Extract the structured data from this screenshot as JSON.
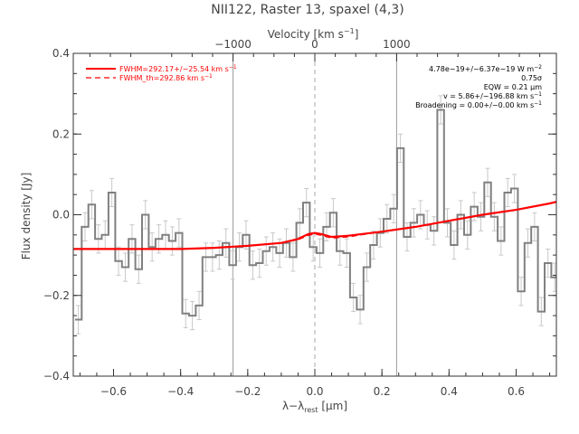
{
  "chart_data": {
    "type": "line",
    "title": "NII122, Raster 13, spaxel (4,3)",
    "xlabel": "λ−λrest [μm]",
    "xlabel_main": "λ−λ",
    "xlabel_sub": "rest",
    "xlabel_unit": " [μm]",
    "ylabel": "Flux density [Jy]",
    "top_xlabel": "Velocity [km s⁻¹]",
    "top_xlabel_main": "Velocity [km s",
    "top_xlabel_sup": "−1",
    "top_xlabel_end": "]",
    "xlim": [
      -0.72,
      0.72
    ],
    "ylim": [
      -0.4,
      0.4
    ],
    "x_ticks": [
      -0.6,
      -0.4,
      -0.2,
      0.0,
      0.2,
      0.4,
      0.6
    ],
    "x_tick_labels": [
      "−0.6",
      "−0.4",
      "−0.2",
      "0.0",
      "0.2",
      "0.4",
      "0.6"
    ],
    "y_ticks": [
      -0.4,
      -0.2,
      0.0,
      0.2,
      0.4
    ],
    "y_tick_labels": [
      "−0.4",
      "−0.2",
      "0.0",
      "0.2",
      "0.4"
    ],
    "top_ticks_wavelength": [
      -0.2438,
      0.0,
      0.2438
    ],
    "top_tick_labels": [
      "−1000",
      "0",
      "1000"
    ],
    "vertical_lines_solid": [
      -0.2438,
      0.2438
    ],
    "vertical_line_dashed": 0.0,
    "legend": [
      {
        "label": "FWHM=292.17+/−25.54 km s",
        "sup": "−1",
        "style": "solid",
        "color": "#ff0000"
      },
      {
        "label": "FWHM_th=292.86 km s",
        "sup": "−1",
        "style": "dashed",
        "color": "#ff0000"
      }
    ],
    "legend_position": "top-left",
    "annotations": [
      {
        "text": "4.78e−19+/−6.37e−19 W m",
        "sup": "−2"
      },
      {
        "text": "0.75σ",
        "sup": ""
      },
      {
        "text": "EQW = 0.21 μm",
        "sup": ""
      },
      {
        "text": "v = 5.86+/−196.88 km s",
        "sup": "−1"
      },
      {
        "text": "Broadening = 0.00+/−0.00 km s",
        "sup": "−1"
      }
    ],
    "annotation_position": "top-right",
    "series": [
      {
        "style": "step",
        "color": "#808080",
        "x": [
          -0.705,
          -0.685,
          -0.665,
          -0.645,
          -0.625,
          -0.605,
          -0.585,
          -0.565,
          -0.545,
          -0.525,
          -0.505,
          -0.485,
          -0.465,
          -0.445,
          -0.425,
          -0.405,
          -0.385,
          -0.365,
          -0.345,
          -0.325,
          -0.305,
          -0.285,
          -0.265,
          -0.245,
          -0.225,
          -0.205,
          -0.185,
          -0.165,
          -0.145,
          -0.125,
          -0.105,
          -0.085,
          -0.065,
          -0.045,
          -0.025,
          -0.005,
          0.015,
          0.035,
          0.055,
          0.075,
          0.095,
          0.115,
          0.135,
          0.155,
          0.175,
          0.195,
          0.215,
          0.235,
          0.255,
          0.275,
          0.295,
          0.315,
          0.335,
          0.355,
          0.375,
          0.395,
          0.415,
          0.435,
          0.455,
          0.475,
          0.495,
          0.515,
          0.535,
          0.555,
          0.575,
          0.595,
          0.615,
          0.635,
          0.655,
          0.675,
          0.695,
          0.715
        ],
        "y": [
          -0.26,
          -0.03,
          0.025,
          -0.06,
          -0.05,
          0.055,
          -0.115,
          -0.13,
          -0.06,
          -0.135,
          0.0,
          -0.08,
          -0.06,
          -0.05,
          -0.065,
          -0.045,
          -0.245,
          -0.25,
          -0.225,
          -0.105,
          -0.105,
          -0.1,
          -0.07,
          -0.125,
          -0.08,
          -0.05,
          -0.125,
          -0.12,
          -0.09,
          -0.08,
          -0.095,
          -0.07,
          -0.105,
          -0.02,
          0.03,
          -0.08,
          -0.095,
          -0.03,
          0.005,
          -0.09,
          -0.095,
          -0.205,
          -0.235,
          -0.13,
          -0.075,
          -0.045,
          -0.01,
          0.015,
          0.165,
          -0.055,
          -0.02,
          0.0,
          -0.025,
          -0.04,
          0.26,
          -0.02,
          -0.075,
          0.0,
          -0.05,
          0.02,
          -0.005,
          0.08,
          -0.005,
          -0.065,
          0.055,
          0.065,
          -0.19,
          -0.07,
          -0.03,
          -0.24,
          -0.12,
          -0.155
        ],
        "err": [
          0.035,
          0.035,
          0.035,
          0.035,
          0.035,
          0.035,
          0.035,
          0.035,
          0.035,
          0.035,
          0.035,
          0.035,
          0.035,
          0.035,
          0.035,
          0.035,
          0.035,
          0.035,
          0.035,
          0.035,
          0.035,
          0.035,
          0.035,
          0.035,
          0.035,
          0.035,
          0.035,
          0.035,
          0.035,
          0.035,
          0.035,
          0.035,
          0.035,
          0.035,
          0.035,
          0.035,
          0.035,
          0.035,
          0.035,
          0.035,
          0.035,
          0.035,
          0.035,
          0.035,
          0.035,
          0.035,
          0.035,
          0.035,
          0.035,
          0.035,
          0.035,
          0.035,
          0.035,
          0.035,
          0.035,
          0.035,
          0.035,
          0.035,
          0.035,
          0.035,
          0.035,
          0.035,
          0.035,
          0.035,
          0.035,
          0.035,
          0.035,
          0.035,
          0.035,
          0.035,
          0.035,
          0.035
        ]
      },
      {
        "style": "solid",
        "color": "#ff0000",
        "x": [
          -0.72,
          -0.6,
          -0.4,
          -0.3,
          -0.2,
          -0.1,
          -0.05,
          -0.02,
          0.0,
          0.02,
          0.05,
          0.1,
          0.2,
          0.3,
          0.4,
          0.5,
          0.6,
          0.7,
          0.72
        ],
        "y": [
          -0.085,
          -0.085,
          -0.085,
          -0.082,
          -0.077,
          -0.07,
          -0.06,
          -0.048,
          -0.045,
          -0.048,
          -0.055,
          -0.052,
          -0.042,
          -0.03,
          -0.015,
          -0.0,
          0.012,
          0.028,
          0.032
        ]
      },
      {
        "style": "dashed",
        "color": "#ff0000",
        "x": [
          -0.72,
          -0.6,
          -0.4,
          -0.3,
          -0.2,
          -0.1,
          -0.05,
          -0.02,
          0.0,
          0.02,
          0.05,
          0.1,
          0.2,
          0.3,
          0.4,
          0.5,
          0.6,
          0.7,
          0.72
        ],
        "y": [
          -0.085,
          -0.085,
          -0.085,
          -0.082,
          -0.077,
          -0.07,
          -0.062,
          -0.051,
          -0.048,
          -0.051,
          -0.058,
          -0.055,
          -0.042,
          -0.03,
          -0.015,
          -0.0,
          0.012,
          0.028,
          0.032
        ]
      }
    ]
  }
}
